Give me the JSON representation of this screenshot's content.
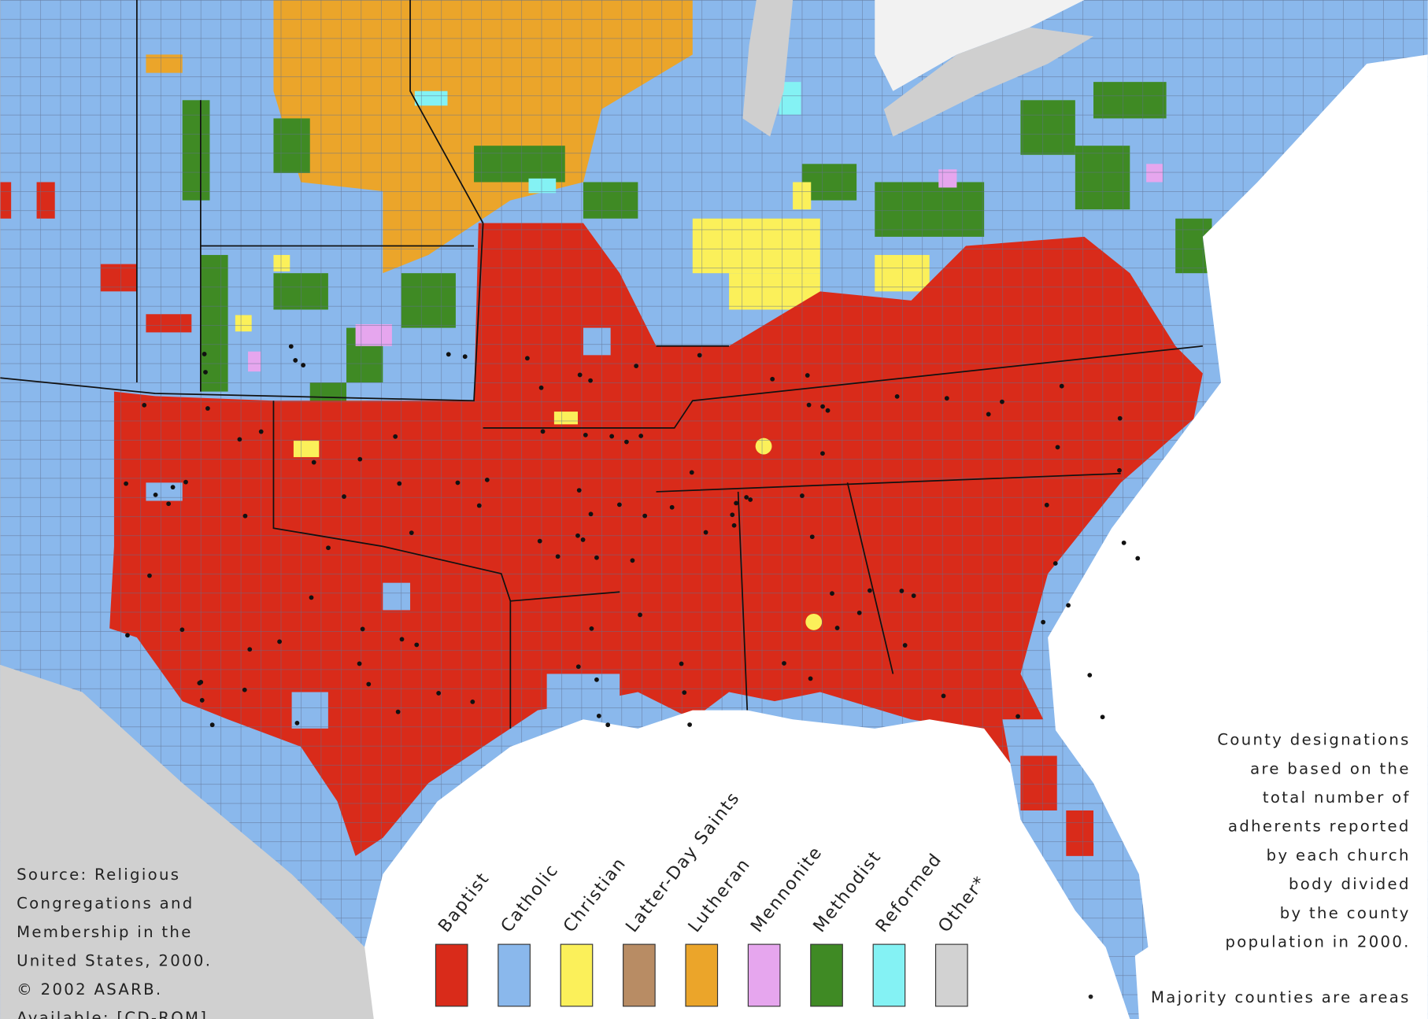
{
  "legend": {
    "items": [
      {
        "label": "Baptist",
        "color": "#d92b1a"
      },
      {
        "label": "Catholic",
        "color": "#8ab8ec"
      },
      {
        "label": "Christian",
        "color": "#fbf05a"
      },
      {
        "label": "Latter-Day Saints",
        "color": "#b88c64"
      },
      {
        "label": "Lutheran",
        "color": "#eba52a"
      },
      {
        "label": "Mennonite",
        "color": "#e6a6ee"
      },
      {
        "label": "Methodist",
        "color": "#3f8a24"
      },
      {
        "label": "Reformed",
        "color": "#84f2f4"
      },
      {
        "label": "Other*",
        "color": "#d2d2d2"
      }
    ]
  },
  "source": [
    "Source:  Religious",
    "Congregations and",
    "Membership in the",
    "United States, 2000.",
    "© 2002 ASARB.",
    "Available: [CD-ROM]"
  ],
  "note": [
    "County designations",
    "are based on the",
    "total number of",
    "adherents reported",
    "by each church",
    "body divided",
    "by the county",
    "population in 2000."
  ],
  "footnote": "Majority counties are areas"
}
